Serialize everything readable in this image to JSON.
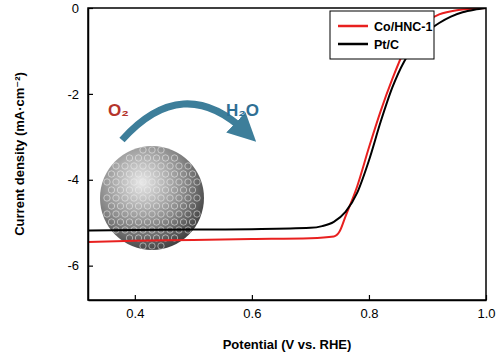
{
  "chart_data": {
    "type": "line",
    "x_label": "Potential (V vs. RHE)",
    "y_label": "Current density (mA·cm⁻²)",
    "xlim": [
      0.32,
      1.0
    ],
    "ylim": [
      -6.8,
      0
    ],
    "xticks": [
      0.4,
      0.6,
      0.8,
      {
        "value": 1.0,
        "label": "1.0"
      }
    ],
    "yticks": [
      0,
      -2,
      -4,
      -6
    ],
    "grid": false,
    "legend": "upper right",
    "annotations": [
      "O₂",
      "H₂O"
    ],
    "series": [
      {
        "name": "Co/HNC-1",
        "color": "#e8201f",
        "x": [
          0.32,
          0.4,
          0.5,
          0.6,
          0.7,
          0.74,
          0.75,
          0.76,
          0.78,
          0.8,
          0.82,
          0.84,
          0.86,
          0.88,
          0.9,
          0.92,
          0.95,
          1.0
        ],
        "values": [
          -5.45,
          -5.42,
          -5.4,
          -5.38,
          -5.36,
          -5.32,
          -5.2,
          -4.85,
          -4.15,
          -3.25,
          -2.4,
          -1.65,
          -1.0,
          -0.55,
          -0.3,
          -0.15,
          -0.05,
          0
        ]
      },
      {
        "name": "Pt/C",
        "color": "#000000",
        "x": [
          0.32,
          0.4,
          0.5,
          0.6,
          0.7,
          0.72,
          0.74,
          0.76,
          0.78,
          0.8,
          0.82,
          0.84,
          0.86,
          0.88,
          0.9,
          0.92,
          0.94,
          0.96,
          0.98,
          1.0
        ],
        "values": [
          -5.18,
          -5.17,
          -5.16,
          -5.15,
          -5.12,
          -5.08,
          -4.98,
          -4.75,
          -4.3,
          -3.55,
          -2.65,
          -1.85,
          -1.25,
          -0.85,
          -0.55,
          -0.35,
          -0.2,
          -0.1,
          -0.04,
          0
        ]
      }
    ]
  }
}
